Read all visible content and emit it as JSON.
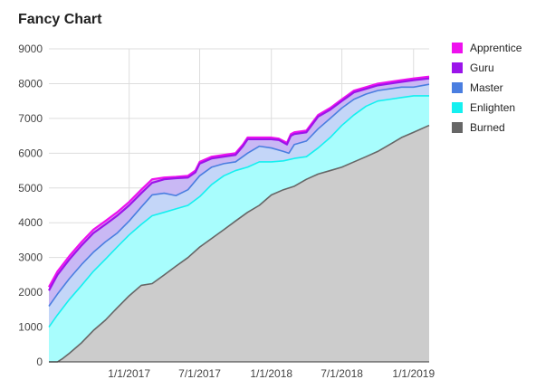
{
  "chart_data": {
    "type": "area",
    "title": "Fancy Chart",
    "xlabel": "",
    "ylabel": "",
    "ylim": [
      0,
      9000
    ],
    "yticks": [
      0,
      1000,
      2000,
      3000,
      4000,
      5000,
      6000,
      7000,
      8000,
      9000
    ],
    "xlim": [
      "2016-06-09",
      "2019-02-10"
    ],
    "xticks": [
      "1/1/2017",
      "7/1/2017",
      "1/1/2018",
      "7/1/2018",
      "1/1/2019"
    ],
    "xtick_dates": [
      "2017-01-01",
      "2017-07-01",
      "2018-01-01",
      "2018-07-01",
      "2019-01-01"
    ],
    "grid": true,
    "legend": "right",
    "series": [
      {
        "name": "Apprentice",
        "color": "#ee11ee",
        "fill": "#d9a3ee",
        "points": [
          [
            "2016-06-09",
            2150
          ],
          [
            "2016-07-01",
            2600
          ],
          [
            "2016-08-01",
            3050
          ],
          [
            "2016-09-01",
            3450
          ],
          [
            "2016-10-01",
            3800
          ],
          [
            "2016-11-01",
            4050
          ],
          [
            "2016-12-01",
            4300
          ],
          [
            "2017-01-01",
            4600
          ],
          [
            "2017-02-01",
            4950
          ],
          [
            "2017-03-01",
            5250
          ],
          [
            "2017-04-01",
            5300
          ],
          [
            "2017-05-01",
            5320
          ],
          [
            "2017-06-01",
            5350
          ],
          [
            "2017-06-20",
            5500
          ],
          [
            "2017-07-01",
            5750
          ],
          [
            "2017-08-01",
            5900
          ],
          [
            "2017-09-01",
            5950
          ],
          [
            "2017-10-01",
            6000
          ],
          [
            "2017-10-20",
            6250
          ],
          [
            "2017-11-01",
            6450
          ],
          [
            "2017-12-01",
            6450
          ],
          [
            "2018-01-01",
            6450
          ],
          [
            "2018-01-20",
            6420
          ],
          [
            "2018-02-10",
            6300
          ],
          [
            "2018-02-20",
            6550
          ],
          [
            "2018-03-01",
            6600
          ],
          [
            "2018-04-01",
            6650
          ],
          [
            "2018-05-01",
            7100
          ],
          [
            "2018-06-01",
            7300
          ],
          [
            "2018-07-01",
            7550
          ],
          [
            "2018-08-01",
            7800
          ],
          [
            "2018-09-01",
            7900
          ],
          [
            "2018-10-01",
            8000
          ],
          [
            "2018-11-01",
            8050
          ],
          [
            "2018-12-01",
            8100
          ],
          [
            "2019-01-01",
            8150
          ],
          [
            "2019-02-10",
            8200
          ]
        ]
      },
      {
        "name": "Guru",
        "color": "#9b14ea",
        "fill": "#c9b8f4",
        "points": [
          [
            "2016-06-09",
            2050
          ],
          [
            "2016-07-01",
            2500
          ],
          [
            "2016-08-01",
            2950
          ],
          [
            "2016-09-01",
            3350
          ],
          [
            "2016-10-01",
            3700
          ],
          [
            "2016-11-01",
            3950
          ],
          [
            "2016-12-01",
            4200
          ],
          [
            "2017-01-01",
            4500
          ],
          [
            "2017-02-01",
            4850
          ],
          [
            "2017-03-01",
            5150
          ],
          [
            "2017-04-01",
            5250
          ],
          [
            "2017-05-01",
            5280
          ],
          [
            "2017-06-01",
            5300
          ],
          [
            "2017-06-20",
            5450
          ],
          [
            "2017-07-01",
            5700
          ],
          [
            "2017-08-01",
            5850
          ],
          [
            "2017-09-01",
            5900
          ],
          [
            "2017-10-01",
            5950
          ],
          [
            "2017-10-20",
            6200
          ],
          [
            "2017-11-01",
            6400
          ],
          [
            "2017-12-01",
            6400
          ],
          [
            "2018-01-01",
            6400
          ],
          [
            "2018-01-20",
            6380
          ],
          [
            "2018-02-10",
            6250
          ],
          [
            "2018-02-20",
            6500
          ],
          [
            "2018-03-01",
            6550
          ],
          [
            "2018-04-01",
            6600
          ],
          [
            "2018-05-01",
            7050
          ],
          [
            "2018-06-01",
            7250
          ],
          [
            "2018-07-01",
            7500
          ],
          [
            "2018-08-01",
            7750
          ],
          [
            "2018-09-01",
            7850
          ],
          [
            "2018-10-01",
            7950
          ],
          [
            "2018-11-01",
            8000
          ],
          [
            "2018-12-01",
            8050
          ],
          [
            "2019-01-01",
            8100
          ],
          [
            "2019-02-10",
            8150
          ]
        ]
      },
      {
        "name": "Master",
        "color": "#4a7ee0",
        "fill": "#c4d6f8",
        "points": [
          [
            "2016-06-09",
            1600
          ],
          [
            "2016-07-01",
            1950
          ],
          [
            "2016-08-01",
            2400
          ],
          [
            "2016-09-01",
            2800
          ],
          [
            "2016-10-01",
            3150
          ],
          [
            "2016-11-01",
            3450
          ],
          [
            "2016-12-01",
            3700
          ],
          [
            "2017-01-01",
            4050
          ],
          [
            "2017-02-01",
            4450
          ],
          [
            "2017-03-01",
            4800
          ],
          [
            "2017-04-01",
            4850
          ],
          [
            "2017-05-01",
            4780
          ],
          [
            "2017-06-01",
            4950
          ],
          [
            "2017-07-01",
            5350
          ],
          [
            "2017-08-01",
            5600
          ],
          [
            "2017-09-01",
            5700
          ],
          [
            "2017-10-01",
            5750
          ],
          [
            "2017-11-01",
            6000
          ],
          [
            "2017-12-01",
            6200
          ],
          [
            "2018-01-01",
            6150
          ],
          [
            "2018-02-01",
            6050
          ],
          [
            "2018-02-15",
            6000
          ],
          [
            "2018-03-01",
            6250
          ],
          [
            "2018-04-01",
            6350
          ],
          [
            "2018-05-01",
            6700
          ],
          [
            "2018-06-01",
            7000
          ],
          [
            "2018-07-01",
            7300
          ],
          [
            "2018-08-01",
            7550
          ],
          [
            "2018-09-01",
            7700
          ],
          [
            "2018-10-01",
            7800
          ],
          [
            "2018-11-01",
            7850
          ],
          [
            "2018-12-01",
            7900
          ],
          [
            "2019-01-01",
            7900
          ],
          [
            "2019-02-10",
            7980
          ]
        ]
      },
      {
        "name": "Enlighten",
        "color": "#14f0f0",
        "fill": "#a8fdfd",
        "points": [
          [
            "2016-06-09",
            1000
          ],
          [
            "2016-07-01",
            1350
          ],
          [
            "2016-08-01",
            1800
          ],
          [
            "2016-09-01",
            2200
          ],
          [
            "2016-10-01",
            2600
          ],
          [
            "2016-11-01",
            2950
          ],
          [
            "2016-12-01",
            3300
          ],
          [
            "2017-01-01",
            3650
          ],
          [
            "2017-02-01",
            3950
          ],
          [
            "2017-03-01",
            4200
          ],
          [
            "2017-04-01",
            4300
          ],
          [
            "2017-05-01",
            4400
          ],
          [
            "2017-06-01",
            4500
          ],
          [
            "2017-07-01",
            4750
          ],
          [
            "2017-08-01",
            5100
          ],
          [
            "2017-09-01",
            5350
          ],
          [
            "2017-10-01",
            5500
          ],
          [
            "2017-11-01",
            5600
          ],
          [
            "2017-12-01",
            5750
          ],
          [
            "2018-01-01",
            5750
          ],
          [
            "2018-02-01",
            5780
          ],
          [
            "2018-03-01",
            5850
          ],
          [
            "2018-04-01",
            5900
          ],
          [
            "2018-05-01",
            6150
          ],
          [
            "2018-06-01",
            6450
          ],
          [
            "2018-07-01",
            6800
          ],
          [
            "2018-08-01",
            7100
          ],
          [
            "2018-09-01",
            7350
          ],
          [
            "2018-10-01",
            7500
          ],
          [
            "2018-11-01",
            7550
          ],
          [
            "2018-12-01",
            7600
          ],
          [
            "2019-01-01",
            7650
          ],
          [
            "2019-02-10",
            7650
          ]
        ]
      },
      {
        "name": "Burned",
        "color": "#666666",
        "fill": "#cccccc",
        "points": [
          [
            "2016-06-09",
            0
          ],
          [
            "2016-07-01",
            0
          ],
          [
            "2016-07-15",
            100
          ],
          [
            "2016-08-01",
            250
          ],
          [
            "2016-09-01",
            550
          ],
          [
            "2016-10-01",
            900
          ],
          [
            "2016-11-01",
            1200
          ],
          [
            "2016-12-01",
            1550
          ],
          [
            "2017-01-01",
            1900
          ],
          [
            "2017-02-01",
            2200
          ],
          [
            "2017-03-01",
            2250
          ],
          [
            "2017-04-01",
            2500
          ],
          [
            "2017-05-01",
            2750
          ],
          [
            "2017-06-01",
            3000
          ],
          [
            "2017-07-01",
            3300
          ],
          [
            "2017-08-01",
            3550
          ],
          [
            "2017-09-01",
            3800
          ],
          [
            "2017-10-01",
            4050
          ],
          [
            "2017-11-01",
            4300
          ],
          [
            "2017-12-01",
            4500
          ],
          [
            "2018-01-01",
            4800
          ],
          [
            "2018-02-01",
            4950
          ],
          [
            "2018-03-01",
            5050
          ],
          [
            "2018-04-01",
            5250
          ],
          [
            "2018-05-01",
            5400
          ],
          [
            "2018-06-01",
            5500
          ],
          [
            "2018-07-01",
            5600
          ],
          [
            "2018-08-01",
            5750
          ],
          [
            "2018-09-01",
            5900
          ],
          [
            "2018-10-01",
            6050
          ],
          [
            "2018-11-01",
            6250
          ],
          [
            "2018-12-01",
            6450
          ],
          [
            "2019-01-01",
            6600
          ],
          [
            "2019-02-10",
            6800
          ]
        ]
      }
    ]
  }
}
